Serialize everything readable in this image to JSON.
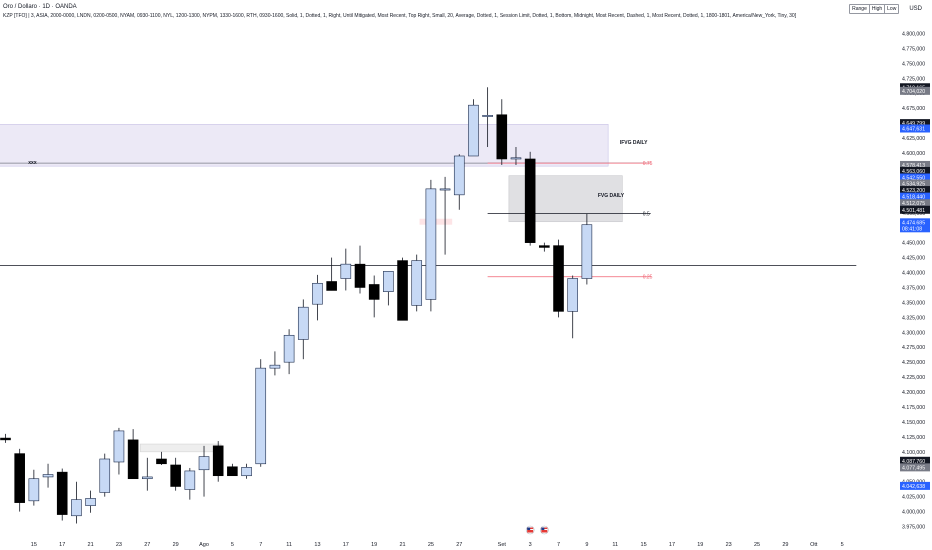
{
  "header": {
    "title": "Oro / Dollaro · 1D · OANDA",
    "indicator": "KZP [TFO] | 3, ASIA, 2000-0000, LNDN, 0200-0500, NYAM, 0930-1100, NYL, 1200-1300, NYPM, 1330-1600, RTH, 0930-1600, Solid, 1, Dotted, 1, Right, Until Mitigated, Most Recent, Top Right, Small, 20, Average, Dotted, 1, Session Limit, Dotted, 1, Bottom, Midnight, Most Recent, Dashed, 1, Most Recent, Dotted, 1, 1800-1801, America/New_York, Tiny, 30]"
  },
  "toolbar": {
    "range_buttons": [
      "Range",
      "High",
      "Low"
    ],
    "currency": "USD"
  },
  "colors": {
    "bull_fill": "#c7d9f5",
    "bull_border": "#1b2a4a",
    "bear_fill": "#000000",
    "zone_purple": "#ece9f6",
    "zone_grey": "#e0e0e3",
    "fib_red": "#f06070",
    "label_dark": "#131722",
    "label_grey": "#787b86",
    "label_blue": "#2962ff"
  },
  "chart_data": {
    "type": "candlestick",
    "y_axis": {
      "min": 3962.5,
      "max": 4812.5,
      "ticks": [
        "4.800,000",
        "4.775,000",
        "4.750,000",
        "4.725,000",
        "4.700,000",
        "4.675,000",
        "4.650,000",
        "4.625,000",
        "4.600,000",
        "4.575,000",
        "4.550,000",
        "4.525,000",
        "4.500,000",
        "4.475,000",
        "4.450,000",
        "4.425,000",
        "4.400,000",
        "4.375,000",
        "4.350,000",
        "4.325,000",
        "4.300,000",
        "4.275,000",
        "4.250,000",
        "4.225,000",
        "4.200,000",
        "4.175,000",
        "4.150,000",
        "4.125,000",
        "4.100,000",
        "4.075,000",
        "4.050,000",
        "4.025,000",
        "4.000,000",
        "3.975,000"
      ],
      "tick_values": [
        4800,
        4775,
        4750,
        4725,
        4700,
        4675,
        4650,
        4625,
        4600,
        4575,
        4550,
        4525,
        4500,
        4475,
        4450,
        4425,
        4400,
        4375,
        4350,
        4325,
        4300,
        4275,
        4250,
        4225,
        4200,
        4175,
        4150,
        4125,
        4100,
        4075,
        4050,
        4025,
        4000,
        3975
      ]
    },
    "x_axis": {
      "labels": [
        {
          "text": "15",
          "i": 2
        },
        {
          "text": "17",
          "i": 4
        },
        {
          "text": "21",
          "i": 6
        },
        {
          "text": "23",
          "i": 8
        },
        {
          "text": "27",
          "i": 10
        },
        {
          "text": "29",
          "i": 12
        },
        {
          "text": "Ago",
          "i": 14
        },
        {
          "text": "5",
          "i": 16
        },
        {
          "text": "7",
          "i": 18
        },
        {
          "text": "11",
          "i": 20
        },
        {
          "text": "13",
          "i": 22
        },
        {
          "text": "17",
          "i": 24
        },
        {
          "text": "19",
          "i": 26
        },
        {
          "text": "21",
          "i": 28
        },
        {
          "text": "25",
          "i": 30
        },
        {
          "text": "27",
          "i": 32
        },
        {
          "text": "Set",
          "i": 35
        },
        {
          "text": "3",
          "i": 37
        },
        {
          "text": "7",
          "i": 39
        },
        {
          "text": "9",
          "i": 41
        },
        {
          "text": "11",
          "i": 43
        },
        {
          "text": "15",
          "i": 45
        },
        {
          "text": "17",
          "i": 47
        },
        {
          "text": "19",
          "i": 49
        },
        {
          "text": "23",
          "i": 51
        },
        {
          "text": "25",
          "i": 53
        },
        {
          "text": "29",
          "i": 55
        },
        {
          "text": "Ott",
          "i": 57
        },
        {
          "text": "5",
          "i": 59
        }
      ]
    },
    "candles": [
      {
        "i": 0,
        "o": 4123,
        "h": 4130,
        "l": 4115,
        "c": 4120
      },
      {
        "i": 1,
        "o": 4097,
        "h": 4105,
        "l": 4000,
        "c": 4015
      },
      {
        "i": 2,
        "o": 4018,
        "h": 4070,
        "l": 4010,
        "c": 4055
      },
      {
        "i": 3,
        "o": 4058,
        "h": 4080,
        "l": 4040,
        "c": 4062
      },
      {
        "i": 4,
        "o": 4066,
        "h": 4072,
        "l": 3985,
        "c": 3995
      },
      {
        "i": 5,
        "o": 3993,
        "h": 4050,
        "l": 3980,
        "c": 4020
      },
      {
        "i": 6,
        "o": 4010,
        "h": 4035,
        "l": 3998,
        "c": 4022
      },
      {
        "i": 7,
        "o": 4032,
        "h": 4097,
        "l": 4025,
        "c": 4088
      },
      {
        "i": 8,
        "o": 4083,
        "h": 4140,
        "l": 4062,
        "c": 4135
      },
      {
        "i": 9,
        "o": 4120,
        "h": 4138,
        "l": 4060,
        "c": 4055
      },
      {
        "i": 10,
        "o": 4055,
        "h": 4090,
        "l": 4035,
        "c": 4058
      },
      {
        "i": 11,
        "o": 4088,
        "h": 4100,
        "l": 4078,
        "c": 4080
      },
      {
        "i": 12,
        "o": 4078,
        "h": 4090,
        "l": 4035,
        "c": 4042
      },
      {
        "i": 13,
        "o": 4037,
        "h": 4073,
        "l": 4020,
        "c": 4068
      },
      {
        "i": 14,
        "o": 4070,
        "h": 4110,
        "l": 4025,
        "c": 4092
      },
      {
        "i": 15,
        "o": 4110,
        "h": 4118,
        "l": 4050,
        "c": 4060
      },
      {
        "i": 16,
        "o": 4075,
        "h": 4080,
        "l": 4060,
        "c": 4060
      },
      {
        "i": 17,
        "o": 4060,
        "h": 4080,
        "l": 4055,
        "c": 4074
      },
      {
        "i": 18,
        "o": 4080,
        "h": 4255,
        "l": 4075,
        "c": 4240
      },
      {
        "i": 19,
        "o": 4240,
        "h": 4268,
        "l": 4228,
        "c": 4245
      },
      {
        "i": 20,
        "o": 4250,
        "h": 4305,
        "l": 4230,
        "c": 4295
      },
      {
        "i": 21,
        "o": 4288,
        "h": 4355,
        "l": 4255,
        "c": 4342
      },
      {
        "i": 22,
        "o": 4347,
        "h": 4396,
        "l": 4320,
        "c": 4382
      },
      {
        "i": 23,
        "o": 4385,
        "h": 4425,
        "l": 4370,
        "c": 4370
      },
      {
        "i": 24,
        "o": 4390,
        "h": 4440,
        "l": 4370,
        "c": 4414
      },
      {
        "i": 25,
        "o": 4414,
        "h": 4445,
        "l": 4365,
        "c": 4375
      },
      {
        "i": 26,
        "o": 4380,
        "h": 4395,
        "l": 4325,
        "c": 4355
      },
      {
        "i": 27,
        "o": 4368,
        "h": 4402,
        "l": 4345,
        "c": 4402
      },
      {
        "i": 28,
        "o": 4420,
        "h": 4425,
        "l": 4320,
        "c": 4320
      },
      {
        "i": 29,
        "o": 4345,
        "h": 4430,
        "l": 4335,
        "c": 4420
      },
      {
        "i": 30,
        "o": 4355,
        "h": 4555,
        "l": 4335,
        "c": 4540
      },
      {
        "i": 31,
        "o": 4540,
        "h": 4560,
        "l": 4430,
        "c": 4540
      },
      {
        "i": 32,
        "o": 4530,
        "h": 4598,
        "l": 4505,
        "c": 4595
      },
      {
        "i": 33,
        "o": 4595,
        "h": 4690,
        "l": 4595,
        "c": 4680
      },
      {
        "i": 34,
        "o": 4661,
        "h": 4710,
        "l": 4610,
        "c": 4663
      },
      {
        "i": 35,
        "o": 4664,
        "h": 4690,
        "l": 4580,
        "c": 4590
      },
      {
        "i": 36,
        "o": 4592,
        "h": 4610,
        "l": 4580,
        "c": 4592
      },
      {
        "i": 37,
        "o": 4590,
        "h": 4602,
        "l": 4445,
        "c": 4450
      },
      {
        "i": 38,
        "o": 4445,
        "h": 4450,
        "l": 4435,
        "c": 4442
      },
      {
        "i": 39,
        "o": 4445,
        "h": 4455,
        "l": 4325,
        "c": 4335
      },
      {
        "i": 40,
        "o": 4335,
        "h": 4395,
        "l": 4290,
        "c": 4390
      },
      {
        "i": 41,
        "o": 4390,
        "h": 4498,
        "l": 4380,
        "c": 4480
      }
    ],
    "zones": [
      {
        "kind": "purple",
        "x_from": -1,
        "x_to": 42.5,
        "y_top": 4648,
        "y_bot": 4578
      },
      {
        "kind": "grey",
        "x_from": 35.5,
        "x_to": 43.5,
        "y_top": 4562,
        "y_bot": 4485
      },
      {
        "kind": "light",
        "x_from": 9.5,
        "x_to": 15.2,
        "y_top": 4113,
        "y_bot": 4100
      },
      {
        "kind": "pink",
        "x_from": 29.2,
        "x_to": 31.5,
        "y_top": 4490,
        "y_bot": 4480
      }
    ],
    "lines": [
      {
        "label": "",
        "y": 4412,
        "x_from": -1,
        "x_to": 60,
        "color": "#131722",
        "style": "solid"
      },
      {
        "label": "",
        "y": 4583,
        "x_from": -1,
        "x_to": 45.5,
        "color": "#787b86",
        "style": "solid"
      },
      {
        "label": "0.5",
        "y": 4499,
        "x_from": 34,
        "x_to": 45.5,
        "color": "#131722",
        "style": "solid"
      },
      {
        "label": "0.75",
        "y": 4583,
        "x_from": 34,
        "x_to": 45.5,
        "color": "#f06070",
        "style": "solid"
      },
      {
        "label": "0.25",
        "y": 4393,
        "x_from": 34,
        "x_to": 45.5,
        "color": "#f06070",
        "style": "solid"
      }
    ],
    "annotations": [
      {
        "text": "IFVG DAILY",
        "x": 44.3,
        "y": 4618
      },
      {
        "text": "FVG DAILY",
        "x": 42.7,
        "y": 4530
      },
      {
        "text": "xxx",
        "x": 1.9,
        "y": 4585
      }
    ],
    "price_labels": [
      {
        "text": "4.710,165",
        "y": 4710,
        "bg": "#131722",
        "fg": "#ffffff"
      },
      {
        "text": "4.704,020",
        "y": 4704,
        "bg": "#787b86",
        "fg": "#ffffff"
      },
      {
        "text": "4.649,799",
        "y": 4650,
        "bg": "#131722",
        "fg": "#ffffff"
      },
      {
        "text": "4.647,631",
        "y": 4641,
        "bg": "#2962ff",
        "fg": "#ffffff"
      },
      {
        "text": "4.578,413",
        "y": 4580,
        "bg": "#787b86",
        "fg": "#ffffff"
      },
      {
        "text": "4.563,060",
        "y": 4570,
        "bg": "#131722",
        "fg": "#ffffff"
      },
      {
        "text": "4.542,550",
        "y": 4559,
        "bg": "#2962ff",
        "fg": "#ffffff"
      },
      {
        "text": "4.534,925",
        "y": 4549,
        "bg": "#787b86",
        "fg": "#ffffff"
      },
      {
        "text": "4.523,200",
        "y": 4538,
        "bg": "#131722",
        "fg": "#ffffff"
      },
      {
        "text": "4.518,440",
        "y": 4527,
        "bg": "#2962ff",
        "fg": "#ffffff"
      },
      {
        "text": "4.512,075",
        "y": 4516,
        "bg": "#787b86",
        "fg": "#ffffff"
      },
      {
        "text": "4.501,481",
        "y": 4505,
        "bg": "#131722",
        "fg": "#ffffff"
      },
      {
        "text": "4.474,685",
        "y": 4484,
        "bg": "#2962ff",
        "fg": "#ffffff"
      },
      {
        "text": "08:41:08",
        "y": 4474,
        "bg": "#2962ff",
        "fg": "#ffffff"
      },
      {
        "text": "4.087,760",
        "y": 4085,
        "bg": "#131722",
        "fg": "#ffffff"
      },
      {
        "text": "4.077,495",
        "y": 4074,
        "bg": "#787b86",
        "fg": "#ffffff"
      },
      {
        "text": "4.042,638",
        "y": 4043,
        "bg": "#2962ff",
        "fg": "#ffffff"
      }
    ],
    "event_markers": [
      {
        "icon": "us-flag-icon",
        "i": 37
      },
      {
        "icon": "us-flag-icon",
        "i": 38
      }
    ]
  }
}
